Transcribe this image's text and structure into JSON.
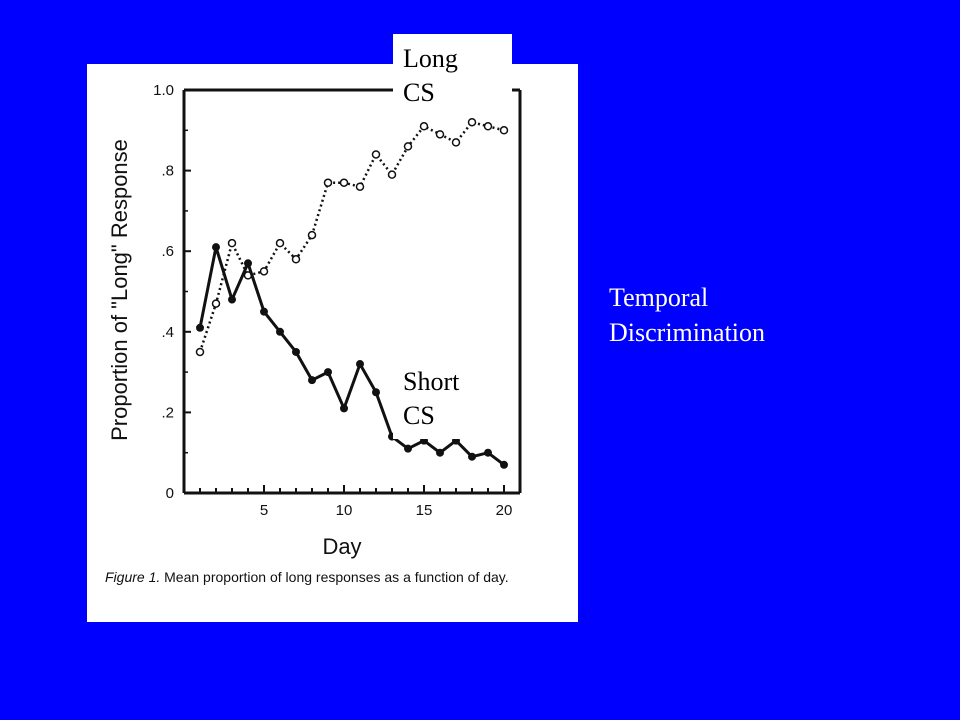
{
  "slide": {
    "title_line1": "Temporal",
    "title_line2": "Discrimination",
    "background_color": "#0000ff"
  },
  "callouts": {
    "long_line1": "Long",
    "long_line2": "CS",
    "short_line1": "Short",
    "short_line2": "CS"
  },
  "caption": {
    "label": "Figure 1.",
    "text": " Mean proportion of long responses as a function of day."
  },
  "chart_data": {
    "type": "line",
    "xlabel": "Day",
    "ylabel": "Proportion of \"Long\" Response",
    "xlim": [
      0,
      21
    ],
    "ylim": [
      0,
      1.0
    ],
    "x_ticks": [
      5,
      10,
      15,
      20
    ],
    "x_tick_labels": [
      "5",
      "10",
      "15",
      "20"
    ],
    "y_ticks": [
      0,
      0.2,
      0.4,
      0.6,
      0.8,
      1.0
    ],
    "y_tick_labels": [
      "0",
      ".2",
      ".4",
      ".6",
      ".8",
      "1.0"
    ],
    "grid": false,
    "x": [
      1,
      2,
      3,
      4,
      5,
      6,
      7,
      8,
      9,
      10,
      11,
      12,
      13,
      14,
      15,
      16,
      17,
      18,
      19,
      20
    ],
    "series": [
      {
        "name": "Long CS",
        "style": "dotted",
        "marker": "open-circle",
        "values": [
          0.35,
          0.47,
          0.62,
          0.54,
          0.55,
          0.62,
          0.58,
          0.64,
          0.77,
          0.77,
          0.76,
          0.84,
          0.79,
          0.86,
          0.91,
          0.89,
          0.87,
          0.92,
          0.91,
          0.9
        ]
      },
      {
        "name": "Short CS",
        "style": "solid",
        "marker": "filled-circle",
        "values": [
          0.41,
          0.61,
          0.48,
          0.57,
          0.45,
          0.4,
          0.35,
          0.28,
          0.3,
          0.21,
          0.32,
          0.25,
          0.14,
          0.11,
          0.13,
          0.1,
          0.13,
          0.09,
          0.1,
          0.07
        ]
      }
    ]
  }
}
